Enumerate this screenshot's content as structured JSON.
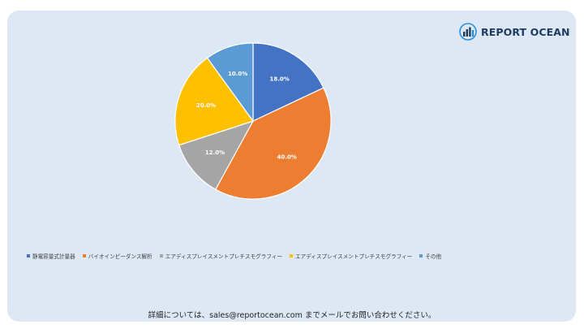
{
  "brand": {
    "name": "REPORT OCEAN",
    "icon": "report-ocean-logo-icon",
    "color": "#1f3a5f"
  },
  "chart_data": {
    "type": "pie",
    "title": "",
    "start_angle_deg": 0,
    "direction": "clockwise",
    "slices": [
      {
        "label": "静電容量式計量器",
        "value": 18.0,
        "display": "18.0%",
        "color": "#4472c4"
      },
      {
        "label": "バイオインピーダンス解析",
        "value": 40.0,
        "display": "40.0%",
        "color": "#ed7d31"
      },
      {
        "label": "エアディスプレイスメントプレチスモグラフィー",
        "value": 12.0,
        "display": "12.0%",
        "color": "#a5a5a5"
      },
      {
        "label": "エアディスプレイスメントプレチスモグラフィー",
        "value": 20.0,
        "display": "20.0%",
        "color": "#ffc000"
      },
      {
        "label": "その他",
        "value": 10.0,
        "display": "10.0%",
        "color": "#5b9bd5"
      }
    ],
    "legend_position": "bottom"
  },
  "footer": {
    "text": "詳細については、sales@reportocean.com までメールでお問い合わせください。"
  }
}
